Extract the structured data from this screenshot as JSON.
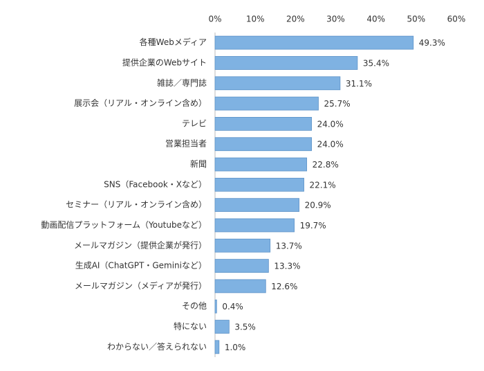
{
  "chart_data": {
    "type": "bar",
    "orientation": "horizontal",
    "categories": [
      "各種Webメディア",
      "提供企業のWebサイト",
      "雑誌／専門誌",
      "展示会（リアル・オンライン含め）",
      "テレビ",
      "営業担当者",
      "新聞",
      "SNS（Facebook・Xなど）",
      "セミナー（リアル・オンライン含め）",
      "動画配信プラットフォーム（Youtubeなど）",
      "メールマガジン（提供企業が発行）",
      "生成AI（ChatGPT・Geminiなど）",
      "メールマガジン（メディアが発行）",
      "その他",
      "特にない",
      "わからない／答えられない"
    ],
    "values": [
      49.3,
      35.4,
      31.1,
      25.7,
      24.0,
      24.0,
      22.8,
      22.1,
      20.9,
      19.7,
      13.7,
      13.3,
      12.6,
      0.4,
      3.5,
      1.0
    ],
    "value_labels": [
      "49.3%",
      "35.4%",
      "31.1%",
      "25.7%",
      "24.0%",
      "24.0%",
      "22.8%",
      "22.1%",
      "20.9%",
      "19.7%",
      "13.7%",
      "13.3%",
      "12.6%",
      "0.4%",
      "3.5%",
      "1.0%"
    ],
    "color": "#7fb2e2",
    "xlim": [
      0,
      60
    ],
    "xticks": [
      {
        "value": 0,
        "label": "0%"
      },
      {
        "value": 10,
        "label": "10%"
      },
      {
        "value": 20,
        "label": "20%"
      },
      {
        "value": 30,
        "label": "30%"
      },
      {
        "value": 40,
        "label": "40%"
      },
      {
        "value": 50,
        "label": "50%"
      },
      {
        "value": 60,
        "label": "60%"
      }
    ],
    "grid": false
  }
}
